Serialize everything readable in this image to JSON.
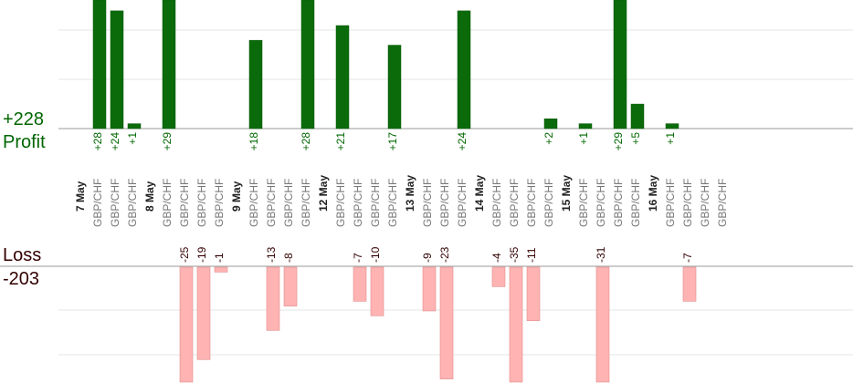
{
  "summary": {
    "profit_total": "+228",
    "profit_label": "Profit",
    "loss_label": "Loss",
    "loss_total": "-203"
  },
  "colors": {
    "profit_bar": "#0b6b0b",
    "profit_text": "#006600",
    "loss_bar": "#ffb3b3",
    "loss_text": "#330000",
    "symbol_text": "#777777",
    "day_text": "#222222",
    "grid": "#e6e6e6",
    "axis": "#999999"
  },
  "chart_data": {
    "type": "bar",
    "days": [
      {
        "label": "7 May",
        "trades": [
          {
            "symbol": "GBP/CHF",
            "profit": 28
          },
          {
            "symbol": "GBP/CHF",
            "profit": 24
          },
          {
            "symbol": "GBP/CHF",
            "profit": 1
          }
        ]
      },
      {
        "label": "8 May",
        "trades": [
          {
            "symbol": "GBP/CHF",
            "profit": 29
          },
          {
            "symbol": "GBP/CHF",
            "loss": 25
          },
          {
            "symbol": "GBP/CHF",
            "loss": 19
          },
          {
            "symbol": "GBP/CHF",
            "loss": 1
          }
        ]
      },
      {
        "label": "9 May",
        "trades": [
          {
            "symbol": "GBP/CHF",
            "profit": 18
          },
          {
            "symbol": "GBP/CHF",
            "loss": 13
          },
          {
            "symbol": "GBP/CHF",
            "loss": 8
          },
          {
            "symbol": "GBP/CHF",
            "profit": 28
          }
        ]
      },
      {
        "label": "12 May",
        "trades": [
          {
            "symbol": "GBP/CHF",
            "profit": 21
          },
          {
            "symbol": "GBP/CHF",
            "loss": 7
          },
          {
            "symbol": "GBP/CHF",
            "loss": 10
          },
          {
            "symbol": "GBP/CHF",
            "profit": 17
          }
        ]
      },
      {
        "label": "13 May",
        "trades": [
          {
            "symbol": "GBP/CHF",
            "loss": 9
          },
          {
            "symbol": "GBP/CHF",
            "loss": 23
          },
          {
            "symbol": "GBP/CHF",
            "profit": 24
          }
        ]
      },
      {
        "label": "14 May",
        "trades": [
          {
            "symbol": "GBP/CHF",
            "loss": 4
          },
          {
            "symbol": "GBP/CHF",
            "loss": 35
          },
          {
            "symbol": "GBP/CHF",
            "loss": 11
          },
          {
            "symbol": "GBP/CHF",
            "profit": 2
          }
        ]
      },
      {
        "label": "15 May",
        "trades": [
          {
            "symbol": "GBP/CHF",
            "profit": 1
          },
          {
            "symbol": "GBP/CHF",
            "loss": 31
          },
          {
            "symbol": "GBP/CHF",
            "profit": 29
          },
          {
            "symbol": "GBP/CHF",
            "profit": 5
          }
        ]
      },
      {
        "label": "16 May",
        "trades": [
          {
            "symbol": "GBP/CHF",
            "profit": 1
          },
          {
            "symbol": "GBP/CHF",
            "loss": 7
          },
          {
            "symbol": "GBP/CHF"
          },
          {
            "symbol": "GBP/CHF"
          }
        ]
      }
    ],
    "profit_axis_max": 26,
    "loss_axis_max": 21.5
  }
}
